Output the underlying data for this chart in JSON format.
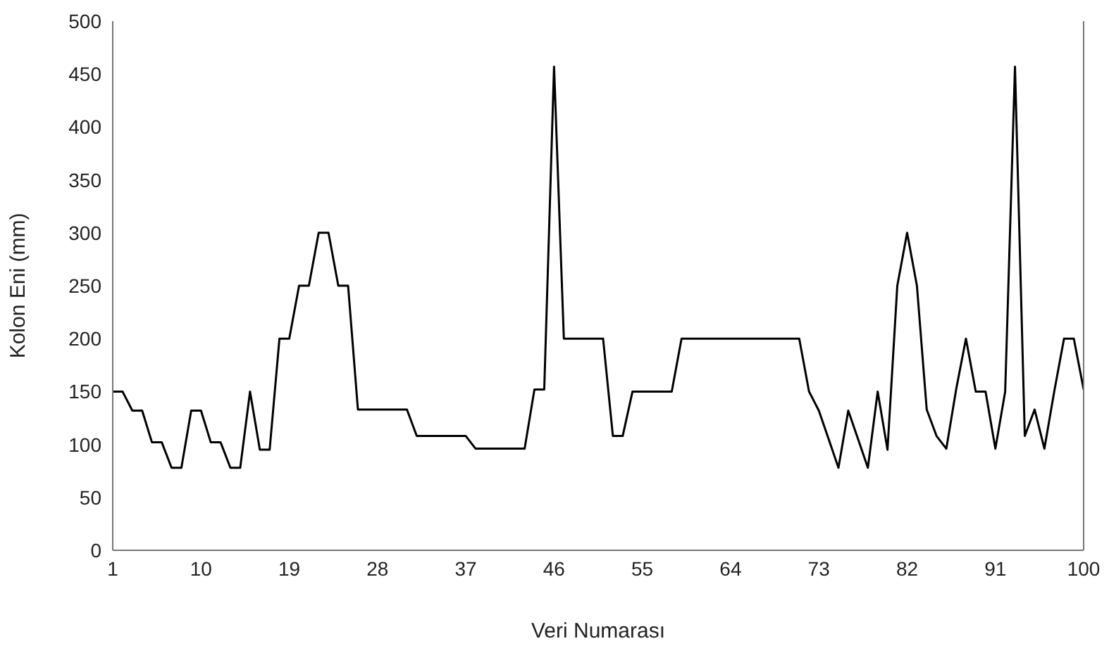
{
  "chart_data": {
    "type": "line",
    "xlabel": "Veri Numarası",
    "ylabel": "Kolon Eni (mm)",
    "x": [
      1,
      2,
      3,
      4,
      5,
      6,
      7,
      8,
      9,
      10,
      11,
      12,
      13,
      14,
      15,
      16,
      17,
      18,
      19,
      20,
      21,
      22,
      23,
      24,
      25,
      26,
      27,
      28,
      29,
      30,
      31,
      32,
      33,
      34,
      35,
      36,
      37,
      38,
      39,
      40,
      41,
      42,
      43,
      44,
      45,
      46,
      47,
      48,
      49,
      50,
      51,
      52,
      53,
      54,
      55,
      56,
      57,
      58,
      59,
      60,
      61,
      62,
      63,
      64,
      65,
      66,
      67,
      68,
      69,
      70,
      71,
      72,
      73,
      74,
      75,
      76,
      77,
      78,
      79,
      80,
      81,
      82,
      83,
      84,
      85,
      86,
      87,
      88,
      89,
      90,
      91,
      92,
      93,
      94,
      95,
      96,
      97,
      98,
      99,
      100
    ],
    "series": [
      {
        "color": "#000000",
        "values": [
          150,
          150,
          132,
          132,
          102,
          102,
          78,
          78,
          132,
          132,
          102,
          102,
          78,
          78,
          150,
          95,
          95,
          200,
          200,
          250,
          250,
          300,
          300,
          250,
          250,
          133,
          133,
          133,
          133,
          133,
          133,
          108,
          108,
          108,
          108,
          108,
          108,
          96,
          96,
          96,
          96,
          96,
          96,
          152,
          152,
          457,
          200,
          200,
          200,
          200,
          200,
          108,
          108,
          150,
          150,
          150,
          150,
          150,
          200,
          200,
          200,
          200,
          200,
          200,
          200,
          200,
          200,
          200,
          200,
          200,
          200,
          150,
          132,
          105,
          78,
          132,
          105,
          78,
          150,
          95,
          250,
          300,
          250,
          133,
          108,
          96,
          152,
          200,
          150,
          150,
          96,
          150,
          457,
          108,
          133,
          96,
          150,
          200,
          200,
          152
        ]
      }
    ],
    "xlim": [
      1,
      100
    ],
    "xticks": [
      1,
      10,
      19,
      28,
      37,
      46,
      55,
      64,
      73,
      82,
      91,
      100
    ],
    "ylim": [
      0,
      500
    ],
    "yticks": [
      0,
      50,
      100,
      150,
      200,
      250,
      300,
      350,
      400,
      450,
      500
    ],
    "grid": false,
    "legend": false,
    "marker": "none",
    "line_style": "solid"
  }
}
